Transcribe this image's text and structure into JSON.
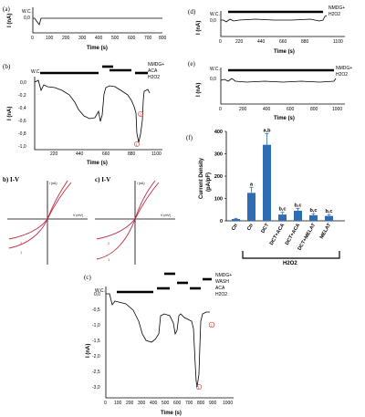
{
  "panels": {
    "a": {
      "label": "(a)",
      "ylabel": "I (nA)",
      "xlabel": "Time (s)",
      "wc": "W.C.",
      "yticks": [
        "0,0"
      ],
      "xticks": [
        "0",
        "100",
        "200",
        "300",
        "400",
        "500",
        "600",
        "700",
        "800"
      ]
    },
    "b": {
      "label": "(b)",
      "ylabel": "I (nA)",
      "xlabel": "Time (s)",
      "wc": "W.C.",
      "treatments": [
        "NMDG+",
        "ACA",
        "H2O2"
      ],
      "yticks": [
        "0,0",
        "-0,2",
        "-0,4",
        "-0,6",
        "-0,8",
        "-1,0"
      ],
      "xticks": [
        "220",
        "440",
        "660",
        "880",
        "1100"
      ],
      "marks": [
        "1",
        "2"
      ]
    },
    "c": {
      "label": "(c)",
      "ylabel": "I (nA)",
      "xlabel": "Time (s)",
      "wc": "W.C.",
      "treatments": [
        "NMDG+",
        "WASH",
        "ACA",
        "H2O2"
      ],
      "yticks": [
        "0,0",
        "-0,5",
        "-1,0",
        "-1,5",
        "-2,0",
        "-2,5",
        "-3,0"
      ],
      "xticks": [
        "0",
        "100",
        "200",
        "300",
        "400",
        "500",
        "600",
        "700",
        "800",
        "900",
        "1000"
      ],
      "marks": [
        "1",
        "2"
      ]
    },
    "d": {
      "label": "(d)",
      "ylabel": "I (nA)",
      "xlabel": "Time (s)",
      "wc": "W.C.",
      "treatments": [
        "NMDG+",
        "H2O2"
      ],
      "yticks": [
        "0,0"
      ],
      "xticks": [
        "0",
        "220",
        "440",
        "660",
        "880",
        "1100"
      ]
    },
    "e": {
      "label": "(e)",
      "ylabel": "I (nA)",
      "xlabel": "Time (s)",
      "wc": "W.C.",
      "treatments": [
        "NMDG+",
        "H2O2"
      ],
      "yticks": [
        "0,0"
      ],
      "xticks": [
        "0",
        "200",
        "400",
        "600",
        "800",
        "1000"
      ]
    },
    "iv_b": {
      "label": "b) I-V",
      "ylabel": "I (nA)",
      "xlabel": "V (mV)",
      "marks": [
        "1",
        "2"
      ]
    },
    "iv_c": {
      "label": "c) I-V",
      "ylabel": "I (nA)",
      "xlabel": "V (mV)",
      "marks": [
        "1",
        "2"
      ]
    }
  },
  "chart_data": {
    "type": "bar",
    "title": "(f)",
    "ylabel": "Current Density\n(pA/pF)",
    "ylim": [
      0,
      400
    ],
    "yticks": [
      "0",
      "100",
      "200",
      "300",
      "400"
    ],
    "categories": [
      "Ctr",
      "Ctr",
      "DCT",
      "DCT+ACA",
      "DCT+ACA",
      "DCT+MELAT",
      "MELAT"
    ],
    "values": [
      8,
      125,
      340,
      28,
      45,
      25,
      22
    ],
    "errors": [
      3,
      25,
      50,
      10,
      10,
      7,
      6
    ],
    "annotations": [
      "",
      "a",
      "a,b",
      "b,c",
      "b,c",
      "b,c",
      "b,c"
    ],
    "group_label": "H2O2",
    "color": "#2e6db4"
  }
}
